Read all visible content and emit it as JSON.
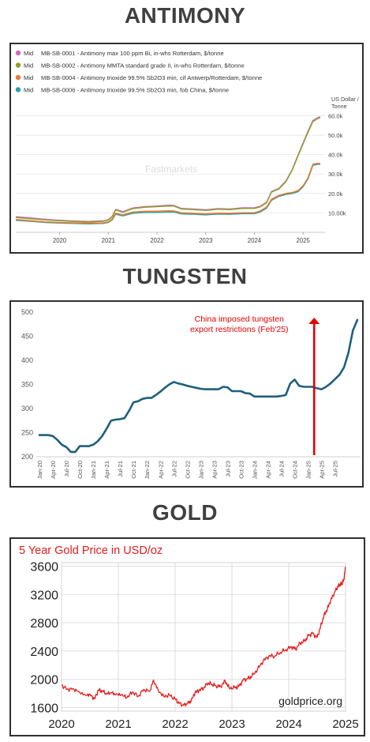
{
  "headings": {
    "antimony": "ANTIMONY",
    "tungsten": "TUNGSTEN",
    "gold": "GOLD"
  },
  "chart_data": [
    {
      "type": "line",
      "id": "antimony",
      "watermark": "Fastmarkets",
      "y_unit": "US Dollar / Tonne",
      "y_unit_lines": [
        "US Dollar /",
        "Tonne"
      ],
      "legend": [
        {
          "tag": "Mid",
          "name": "MB-SB-0001 - Antimony max 100 ppm Bi, in-whs Rotterdam, $/tonne",
          "color": "#d966c6"
        },
        {
          "tag": "Mid",
          "name": "MB-SB-0002 - Antimony MMTA standard grade II, in-whs Rotterdam, $/tonne",
          "color": "#8aa12a"
        },
        {
          "tag": "Mid",
          "name": "MB-SB-0004 - Antimony trioxide 99.5% Sb2O3 min, cif Antwerp/Rotterdam, $/tonne",
          "color": "#ec7a32"
        },
        {
          "tag": "Mid",
          "name": "MB-SB-0006 - Antimony trioxide 99.5% Sb2O3 min, fob China, $/tonne",
          "color": "#2f9ea3"
        }
      ],
      "x_ticks": [
        {
          "label": "2020",
          "x": 2020
        },
        {
          "label": "2021",
          "x": 2021
        },
        {
          "label": "2022",
          "x": 2022
        },
        {
          "label": "2023",
          "x": 2023
        },
        {
          "label": "2024",
          "x": 2024
        },
        {
          "label": "2025",
          "x": 2025
        }
      ],
      "y_ticks": [
        {
          "label": "10.00k",
          "v": 10000
        },
        {
          "label": "20.0k",
          "v": 20000
        },
        {
          "label": "30.0k",
          "v": 30000
        },
        {
          "label": "40.0k",
          "v": 40000
        },
        {
          "label": "50.0k",
          "v": 50000
        },
        {
          "label": "60.0k",
          "v": 60000
        }
      ],
      "xlim": [
        2019.1,
        2025.45
      ],
      "ylim": [
        0,
        61000
      ],
      "series": [
        {
          "name": "MB-SB-0001",
          "color": "#d966c6",
          "points": [
            [
              2019.1,
              8000
            ],
            [
              2019.4,
              7400
            ],
            [
              2019.7,
              6700
            ],
            [
              2020.0,
              6200
            ],
            [
              2020.3,
              5800
            ],
            [
              2020.6,
              5600
            ],
            [
              2020.9,
              5900
            ],
            [
              2021.0,
              6600
            ],
            [
              2021.08,
              8200
            ],
            [
              2021.15,
              11800
            ],
            [
              2021.3,
              10600
            ],
            [
              2021.5,
              12500
            ],
            [
              2021.75,
              13200
            ],
            [
              2022.0,
              13500
            ],
            [
              2022.25,
              14000
            ],
            [
              2022.35,
              13800
            ],
            [
              2022.5,
              12300
            ],
            [
              2022.75,
              12000
            ],
            [
              2023.0,
              11600
            ],
            [
              2023.25,
              12200
            ],
            [
              2023.5,
              12000
            ],
            [
              2023.75,
              12600
            ],
            [
              2024.0,
              12600
            ],
            [
              2024.12,
              13400
            ],
            [
              2024.25,
              15500
            ],
            [
              2024.35,
              21000
            ],
            [
              2024.5,
              22600
            ],
            [
              2024.65,
              26500
            ],
            [
              2024.78,
              32500
            ],
            [
              2024.9,
              40000
            ],
            [
              2025.0,
              46000
            ],
            [
              2025.1,
              52000
            ],
            [
              2025.2,
              57500
            ],
            [
              2025.3,
              59000
            ],
            [
              2025.35,
              59500
            ]
          ]
        },
        {
          "name": "MB-SB-0002",
          "color": "#8aa12a",
          "points": [
            [
              2019.1,
              7600
            ],
            [
              2019.4,
              7000
            ],
            [
              2019.7,
              6400
            ],
            [
              2020.0,
              6000
            ],
            [
              2020.3,
              5600
            ],
            [
              2020.6,
              5300
            ],
            [
              2020.9,
              5700
            ],
            [
              2021.0,
              6400
            ],
            [
              2021.08,
              8000
            ],
            [
              2021.15,
              11500
            ],
            [
              2021.3,
              10300
            ],
            [
              2021.5,
              12200
            ],
            [
              2021.75,
              12900
            ],
            [
              2022.0,
              13200
            ],
            [
              2022.25,
              13600
            ],
            [
              2022.35,
              13500
            ],
            [
              2022.5,
              12000
            ],
            [
              2022.75,
              11700
            ],
            [
              2023.0,
              11300
            ],
            [
              2023.25,
              11900
            ],
            [
              2023.5,
              11700
            ],
            [
              2023.75,
              12300
            ],
            [
              2024.0,
              12300
            ],
            [
              2024.12,
              13100
            ],
            [
              2024.25,
              15200
            ],
            [
              2024.35,
              20700
            ],
            [
              2024.5,
              22300
            ],
            [
              2024.65,
              26200
            ],
            [
              2024.78,
              32200
            ],
            [
              2024.9,
              39600
            ],
            [
              2025.0,
              45600
            ],
            [
              2025.1,
              51500
            ],
            [
              2025.2,
              57000
            ],
            [
              2025.3,
              58500
            ],
            [
              2025.35,
              59000
            ]
          ]
        },
        {
          "name": "MB-SB-0004",
          "color": "#ec7a32",
          "points": [
            [
              2019.1,
              6600
            ],
            [
              2019.4,
              6000
            ],
            [
              2019.7,
              5400
            ],
            [
              2020.0,
              5100
            ],
            [
              2020.3,
              4900
            ],
            [
              2020.6,
              4700
            ],
            [
              2020.9,
              4900
            ],
            [
              2021.0,
              5400
            ],
            [
              2021.08,
              6800
            ],
            [
              2021.15,
              9800
            ],
            [
              2021.3,
              9000
            ],
            [
              2021.5,
              10400
            ],
            [
              2021.75,
              10800
            ],
            [
              2022.0,
              10900
            ],
            [
              2022.25,
              11100
            ],
            [
              2022.35,
              11000
            ],
            [
              2022.5,
              10000
            ],
            [
              2022.75,
              9800
            ],
            [
              2023.0,
              9500
            ],
            [
              2023.25,
              9900
            ],
            [
              2023.5,
              9800
            ],
            [
              2023.75,
              10100
            ],
            [
              2024.0,
              10100
            ],
            [
              2024.12,
              11000
            ],
            [
              2024.25,
              13000
            ],
            [
              2024.35,
              17000
            ],
            [
              2024.5,
              19000
            ],
            [
              2024.65,
              20000
            ],
            [
              2024.78,
              20500
            ],
            [
              2024.9,
              21500
            ],
            [
              2025.0,
              24000
            ],
            [
              2025.1,
              28000
            ],
            [
              2025.2,
              35000
            ],
            [
              2025.3,
              35500
            ],
            [
              2025.35,
              35500
            ]
          ]
        },
        {
          "name": "MB-SB-0006",
          "color": "#2f9ea3",
          "points": [
            [
              2019.1,
              6200
            ],
            [
              2019.4,
              5700
            ],
            [
              2019.7,
              5100
            ],
            [
              2020.0,
              4800
            ],
            [
              2020.3,
              4600
            ],
            [
              2020.6,
              4400
            ],
            [
              2020.9,
              4600
            ],
            [
              2021.0,
              5100
            ],
            [
              2021.08,
              6400
            ],
            [
              2021.15,
              9300
            ],
            [
              2021.3,
              8500
            ],
            [
              2021.5,
              9800
            ],
            [
              2021.75,
              10200
            ],
            [
              2022.0,
              10300
            ],
            [
              2022.25,
              10500
            ],
            [
              2022.35,
              10400
            ],
            [
              2022.5,
              9500
            ],
            [
              2022.75,
              9300
            ],
            [
              2023.0,
              9000
            ],
            [
              2023.25,
              9400
            ],
            [
              2023.5,
              9300
            ],
            [
              2023.75,
              9600
            ],
            [
              2024.0,
              9600
            ],
            [
              2024.12,
              10500
            ],
            [
              2024.25,
              12500
            ],
            [
              2024.35,
              16500
            ],
            [
              2024.5,
              18500
            ],
            [
              2024.65,
              19500
            ],
            [
              2024.78,
              20000
            ],
            [
              2024.9,
              21000
            ],
            [
              2025.0,
              23500
            ],
            [
              2025.1,
              27500
            ],
            [
              2025.2,
              34500
            ],
            [
              2025.3,
              35000
            ],
            [
              2025.35,
              35000
            ]
          ]
        }
      ]
    },
    {
      "type": "line",
      "id": "tungsten",
      "color": "#1f5f7d",
      "ylim": [
        200,
        500
      ],
      "y_ticks": [
        200,
        250,
        300,
        350,
        400,
        450,
        500
      ],
      "x_labels": [
        "Jan-20",
        "Apr-20",
        "Jul-20",
        "Oct-20",
        "Jan-21",
        "Apr-21",
        "Jul-21",
        "Oct-21",
        "Jan-22",
        "Apr-22",
        "Jul-22",
        "Oct-22",
        "Jan-23",
        "Apr-23",
        "Jul-23",
        "Oct-23",
        "Jan-24",
        "Apr-24",
        "Jul-24",
        "Oct-24",
        "Jan-25",
        "Apr-25",
        "Jul-25"
      ],
      "values": [
        245,
        245,
        245,
        243,
        235,
        225,
        220,
        210,
        210,
        222,
        222,
        222,
        225,
        232,
        243,
        258,
        275,
        277,
        278,
        280,
        295,
        313,
        315,
        320,
        322,
        322,
        328,
        335,
        343,
        350,
        355,
        352,
        350,
        347,
        345,
        343,
        341,
        340,
        340,
        340,
        340,
        345,
        344,
        336,
        336,
        336,
        332,
        331,
        325,
        325,
        325,
        325,
        325,
        325,
        326,
        328,
        352,
        360,
        347,
        345,
        345,
        345,
        342,
        340,
        345,
        352,
        361,
        370,
        385,
        415,
        462,
        484
      ],
      "annotation": {
        "lines": [
          "China imposed tungsten",
          "export restrictions (Feb'25)"
        ],
        "color": "#e50000",
        "at_index": 61
      }
    },
    {
      "type": "line",
      "id": "gold",
      "title": "5 Year Gold Price in USD/oz",
      "watermark": "goldprice.org",
      "color": "#e51c1c",
      "xlim": [
        2020,
        2025
      ],
      "ylim": [
        1550,
        3650
      ],
      "y_ticks": [
        1600,
        2000,
        2400,
        2800,
        3200,
        3600
      ],
      "x_ticks": [
        2020,
        2021,
        2022,
        2023,
        2024,
        2025
      ],
      "points": [
        [
          2020.0,
          1920
        ],
        [
          2020.1,
          1860
        ],
        [
          2020.2,
          1870
        ],
        [
          2020.3,
          1830
        ],
        [
          2020.42,
          1780
        ],
        [
          2020.5,
          1790
        ],
        [
          2020.58,
          1725
        ],
        [
          2020.65,
          1850
        ],
        [
          2020.72,
          1830
        ],
        [
          2020.8,
          1790
        ],
        [
          2020.88,
          1810
        ],
        [
          2020.95,
          1780
        ],
        [
          2021.05,
          1780
        ],
        [
          2021.15,
          1740
        ],
        [
          2021.25,
          1820
        ],
        [
          2021.35,
          1760
        ],
        [
          2021.45,
          1860
        ],
        [
          2021.55,
          1830
        ],
        [
          2021.62,
          1990
        ],
        [
          2021.7,
          1850
        ],
        [
          2021.8,
          1760
        ],
        [
          2021.9,
          1780
        ],
        [
          2022.0,
          1720
        ],
        [
          2022.07,
          1660
        ],
        [
          2022.15,
          1630
        ],
        [
          2022.22,
          1660
        ],
        [
          2022.28,
          1690
        ],
        [
          2022.35,
          1810
        ],
        [
          2022.42,
          1840
        ],
        [
          2022.5,
          1880
        ],
        [
          2022.58,
          1950
        ],
        [
          2022.65,
          1930
        ],
        [
          2022.72,
          1910
        ],
        [
          2022.8,
          1900
        ],
        [
          2022.88,
          1980
        ],
        [
          2022.95,
          1880
        ],
        [
          2023.05,
          1880
        ],
        [
          2023.12,
          1900
        ],
        [
          2023.2,
          1990
        ],
        [
          2023.28,
          2010
        ],
        [
          2023.35,
          2040
        ],
        [
          2023.45,
          2140
        ],
        [
          2023.55,
          2260
        ],
        [
          2023.65,
          2330
        ],
        [
          2023.75,
          2330
        ],
        [
          2023.85,
          2380
        ],
        [
          2023.95,
          2420
        ],
        [
          2024.05,
          2460
        ],
        [
          2024.12,
          2430
        ],
        [
          2024.2,
          2510
        ],
        [
          2024.28,
          2540
        ],
        [
          2024.35,
          2620
        ],
        [
          2024.42,
          2650
        ],
        [
          2024.5,
          2590
        ],
        [
          2024.56,
          2740
        ],
        [
          2024.62,
          2900
        ],
        [
          2024.68,
          3000
        ],
        [
          2024.74,
          3120
        ],
        [
          2024.8,
          3220
        ],
        [
          2024.86,
          3310
        ],
        [
          2024.9,
          3340
        ],
        [
          2024.94,
          3360
        ],
        [
          2024.97,
          3410
        ],
        [
          2025.0,
          3590
        ]
      ]
    }
  ]
}
